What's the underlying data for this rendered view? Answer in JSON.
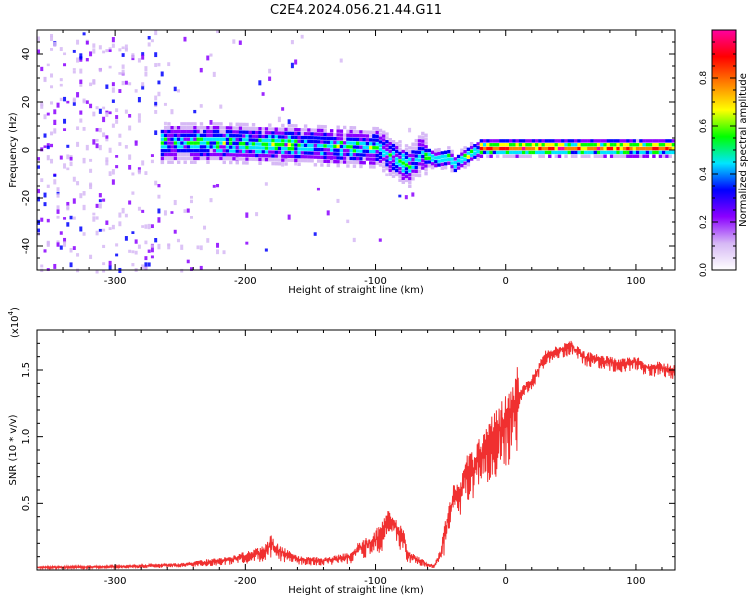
{
  "title": "C2E4.2024.056.21.44.G11",
  "chart_data": [
    {
      "type": "heatmap",
      "name": "spectrogram",
      "xlabel": "Height of straight line (km)",
      "ylabel": "Frequency (Hz)",
      "xlim": [
        -360,
        130
      ],
      "ylim": [
        -50,
        50
      ],
      "xticks": [
        -300,
        -200,
        -100,
        0,
        100
      ],
      "yticks": [
        -40,
        -20,
        0,
        20,
        40
      ],
      "ridge": {
        "x": [
          -265,
          -220,
          -150,
          -100,
          -90,
          -75,
          -65,
          -55,
          -45,
          -40,
          -30,
          -20,
          0,
          50,
          100,
          130
        ],
        "y": [
          2,
          2,
          1,
          0,
          -3,
          -8,
          -2,
          -5,
          -4,
          -7,
          -3,
          0,
          0,
          0,
          0,
          0
        ]
      },
      "colorbar": {
        "label": "Normalized spectral amplitude",
        "range": [
          0,
          1
        ],
        "ticks": [
          "0.0",
          "0.2",
          "0.4",
          "0.6",
          "0.8"
        ],
        "colormap": [
          "#ffffff",
          "#d6b8f5",
          "#8b00ff",
          "#0000ff",
          "#00e5ff",
          "#00ff00",
          "#ffff00",
          "#ff8000",
          "#ff0000",
          "#ff00a0"
        ]
      }
    },
    {
      "type": "line",
      "name": "snr",
      "xlabel": "Height of straight line (km)",
      "ylabel": "SNR (10 * v/v)",
      "scale_label": "(x10",
      "scale_exponent": "4",
      "xlim": [
        -360,
        130
      ],
      "ylim": [
        0,
        1.8
      ],
      "xticks": [
        -300,
        -200,
        -100,
        0,
        100
      ],
      "yticks": [
        0.5,
        1.0,
        1.5
      ],
      "ytick_labels": [
        "0.5",
        "1.0",
        "1.5"
      ],
      "color": "#f03030",
      "x": [
        -360,
        -300,
        -250,
        -210,
        -185,
        -180,
        -175,
        -160,
        -140,
        -120,
        -110,
        -100,
        -95,
        -90,
        -80,
        -75,
        -60,
        -55,
        -50,
        -45,
        -40,
        -35,
        -30,
        -25,
        -20,
        -15,
        -10,
        -5,
        0,
        5,
        10,
        20,
        25,
        30,
        40,
        50,
        60,
        70,
        80,
        90,
        100,
        110,
        120,
        130
      ],
      "y": [
        0.02,
        0.025,
        0.04,
        0.08,
        0.14,
        0.2,
        0.15,
        0.08,
        0.07,
        0.1,
        0.18,
        0.22,
        0.3,
        0.38,
        0.28,
        0.12,
        0.04,
        0.03,
        0.12,
        0.35,
        0.55,
        0.55,
        0.75,
        0.75,
        0.85,
        0.95,
        1.0,
        1.05,
        1.1,
        1.2,
        1.3,
        1.42,
        1.5,
        1.6,
        1.65,
        1.68,
        1.6,
        1.58,
        1.56,
        1.55,
        1.56,
        1.52,
        1.52,
        1.5
      ]
    }
  ]
}
